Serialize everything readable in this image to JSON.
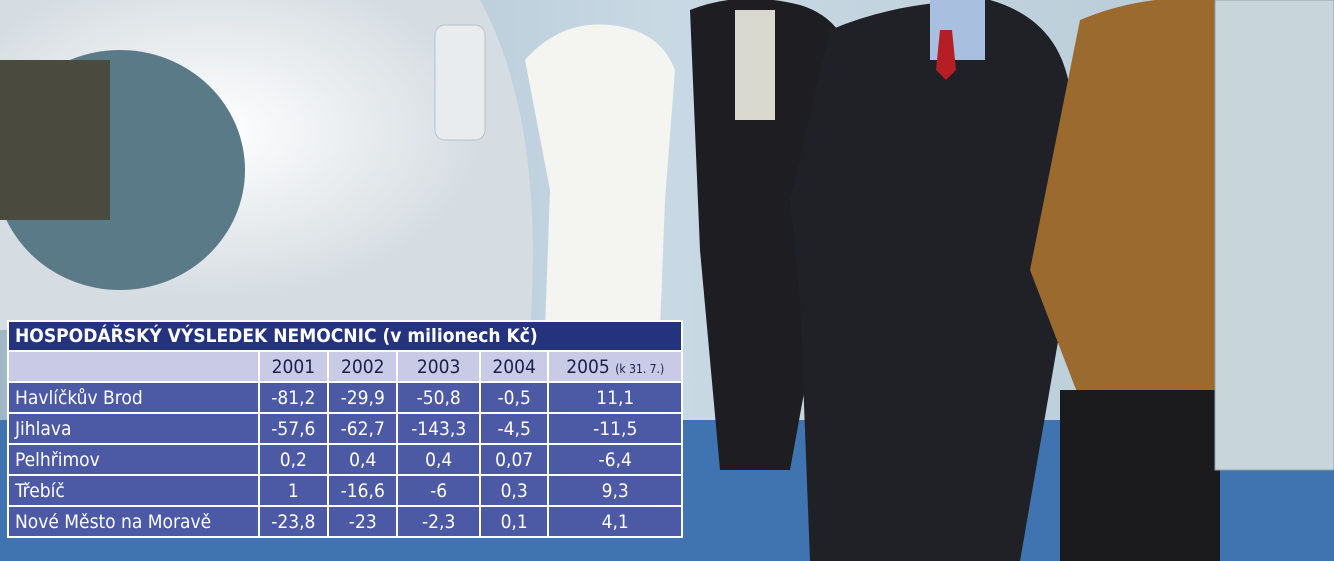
{
  "table": {
    "title": "HOSPODÁŘSKÝ VÝSLEDEK NEMOCNIC (v milionech Kč)",
    "columns": [
      "2001",
      "2002",
      "2003",
      "2004",
      "2005"
    ],
    "column_note": "(k 31. 7.)",
    "rows": [
      [
        "Havlíčkův Brod",
        "-81,2",
        "-29,9",
        "-50,8",
        "-0,5",
        "11,1"
      ],
      [
        "Jihlava",
        "-57,6",
        "-62,7",
        "-143,3",
        "-4,5",
        "-11,5"
      ],
      [
        "Pelhřimov",
        "0,2",
        "0,4",
        "0,4",
        "0,07",
        "-6,4"
      ],
      [
        "Třebíč",
        "1",
        "-16,6",
        "-6",
        "0,3",
        "9,3"
      ],
      [
        "Nové Město na Moravě",
        "-23,8",
        "-23",
        "-2,3",
        "0,1",
        "4,1"
      ]
    ]
  }
}
